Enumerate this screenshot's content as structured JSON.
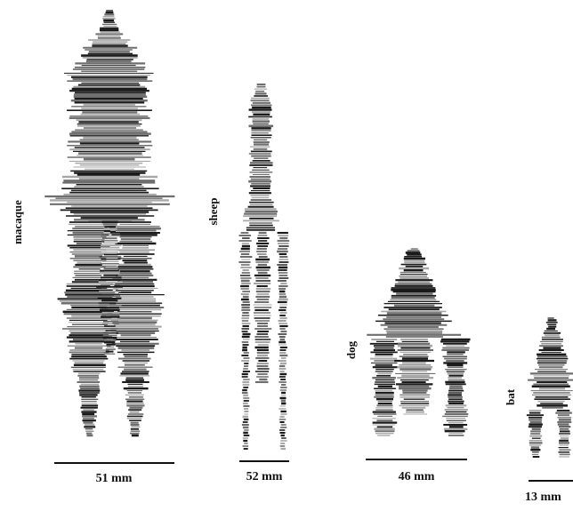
{
  "figure": {
    "colors": {
      "ink": "#1a1a1a",
      "mid": "#6e6e6e",
      "light": "#a8a8a8",
      "background": "#ffffff"
    },
    "panels": [
      {
        "id": "macaque",
        "label": "macaque",
        "scale_label": "51 mm"
      },
      {
        "id": "sheep",
        "label": "sheep",
        "scale_label": "52 mm"
      },
      {
        "id": "dog",
        "label": "dog",
        "scale_label": "46 mm"
      },
      {
        "id": "bat",
        "label": "bat",
        "scale_label": "13 mm"
      }
    ]
  }
}
